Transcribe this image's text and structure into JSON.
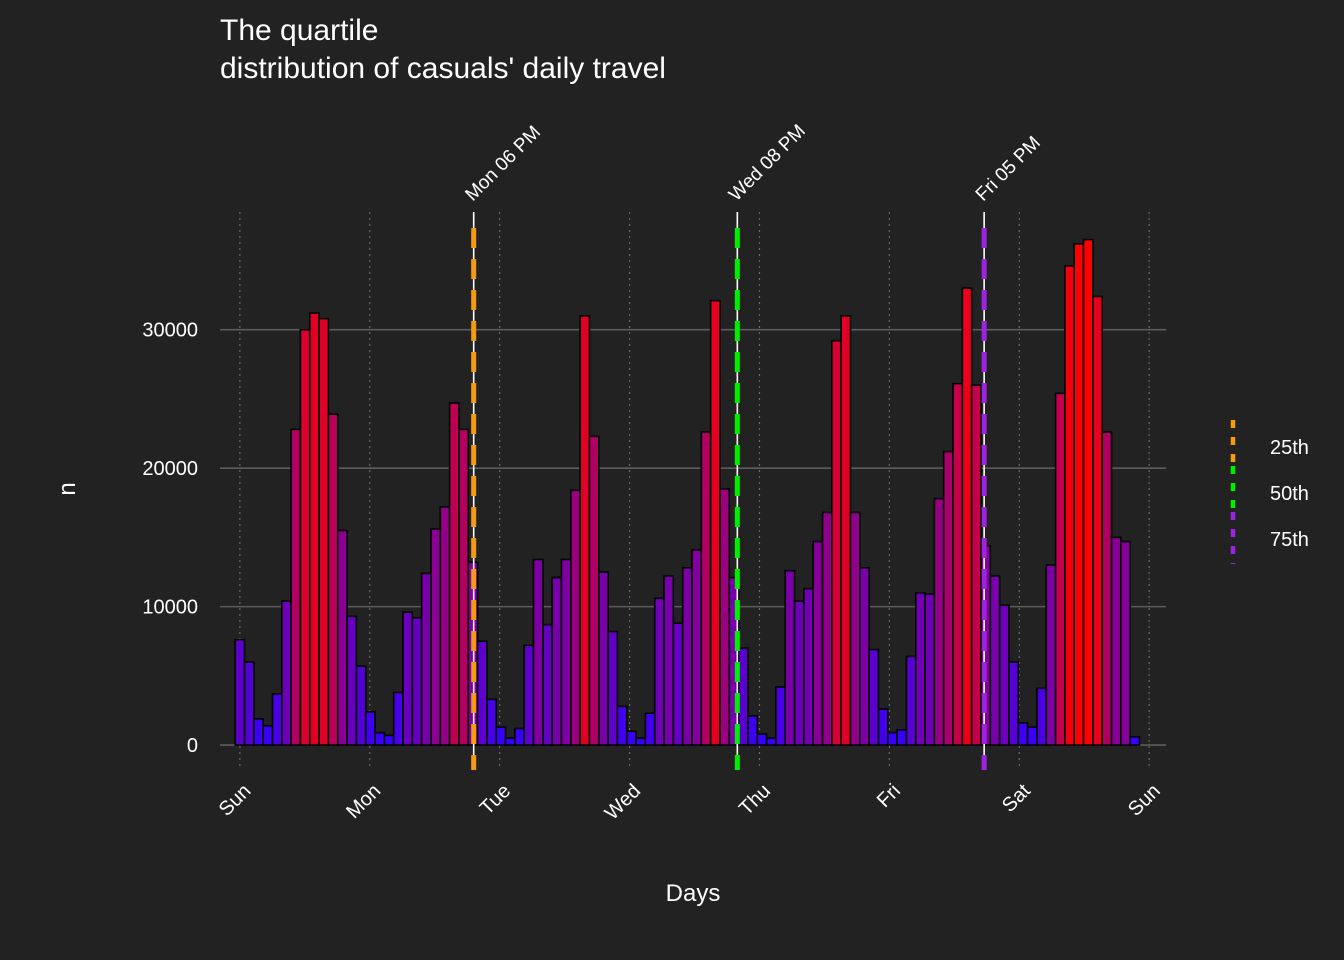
{
  "chart_data": {
    "type": "bar",
    "title_line1": "The quartile",
    "title_line2": "distribution of casuals' daily travel",
    "xlabel": "Days",
    "ylabel": "n",
    "ylim": [
      -1800,
      38500
    ],
    "xlim": [
      -26,
      1212
    ],
    "y_ticks": [
      {
        "value": 0,
        "label": "0"
      },
      {
        "value": 10000,
        "label": "10000"
      },
      {
        "value": 20000,
        "label": "20000"
      },
      {
        "value": 30000,
        "label": "30000"
      }
    ],
    "x_ticks": [
      {
        "value": 0,
        "label": "Sun"
      },
      {
        "value": 170,
        "label": "Mon"
      },
      {
        "value": 340,
        "label": "Tue"
      },
      {
        "value": 510,
        "label": "Wed"
      },
      {
        "value": 680,
        "label": "Thu"
      },
      {
        "value": 850,
        "label": "Fri"
      },
      {
        "value": 1020,
        "label": "Sat"
      },
      {
        "value": 1190,
        "label": "Sun"
      }
    ],
    "bar_width": 12.2,
    "values": [
      7600,
      6000,
      1900,
      1400,
      3700,
      10400,
      22800,
      30000,
      31200,
      30800,
      23900,
      15500,
      9300,
      5700,
      2400,
      900,
      700,
      3800,
      9600,
      9200,
      12400,
      15600,
      17200,
      24700,
      22800,
      13200,
      7500,
      3300,
      1300,
      500,
      1200,
      7200,
      13400,
      8700,
      12100,
      13400,
      18400,
      31000,
      22300,
      12500,
      8200,
      2800,
      1000,
      500,
      2300,
      10600,
      12200,
      8800,
      12800,
      14100,
      22600,
      32100,
      18500,
      12100,
      7000,
      2100,
      800,
      500,
      4200,
      12600,
      10400,
      11300,
      14700,
      16800,
      29200,
      31000,
      16800,
      12800,
      6900,
      2600,
      900,
      1100,
      6400,
      11000,
      10900,
      17800,
      21200,
      26100,
      33000,
      26000,
      14400,
      12200,
      10100,
      6000,
      1600,
      1300,
      4100,
      13000,
      25400,
      34600,
      36200,
      36500,
      32400,
      22600,
      15000,
      14700,
      600
    ],
    "quartile_lines": [
      {
        "x": 306,
        "label": "Mon 06 PM",
        "color": "#f59a12",
        "name": "25th"
      },
      {
        "x": 651,
        "label": "Wed 08 PM",
        "color": "#00ee00",
        "name": "50th"
      },
      {
        "x": 974,
        "label": "Fri 05 PM",
        "color": "#9c23e0",
        "name": "75th"
      }
    ],
    "bar_color_low": "#3300ff",
    "bar_color_high": "#ff0000",
    "legend": {
      "position": "right",
      "items": [
        "25th",
        "50th",
        "75th"
      ]
    },
    "grid": true
  }
}
